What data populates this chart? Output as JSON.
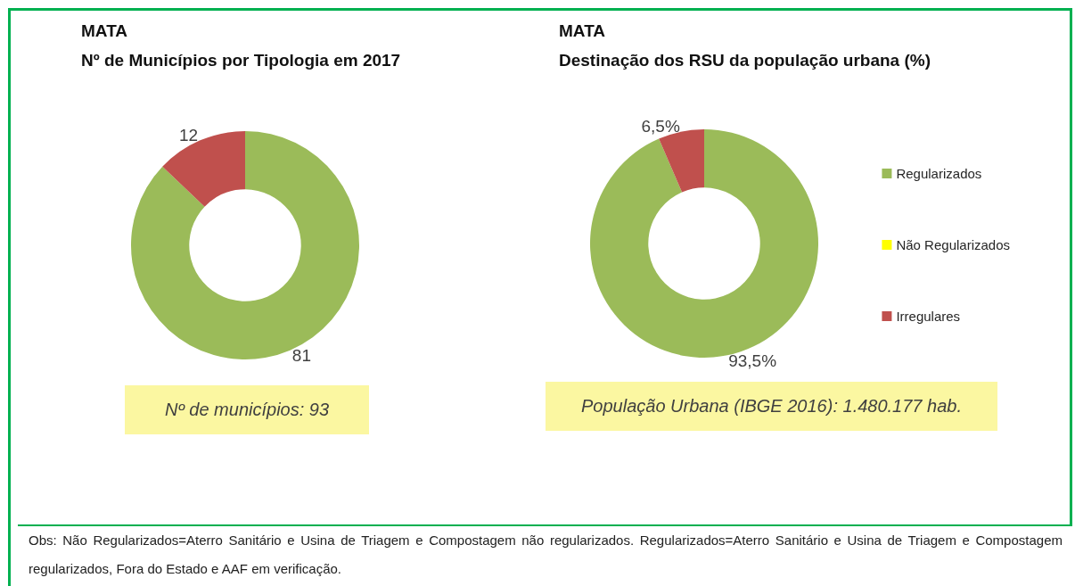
{
  "chart_data": [
    {
      "type": "donut",
      "title": "MATA",
      "subtitle": "Nº de Municípios por Tipologia em 2017",
      "categories": [
        null,
        null,
        null
      ],
      "values": [
        81,
        0,
        12
      ],
      "colors": [
        "#9bbb59",
        "#ffff00",
        "#c0504d"
      ],
      "value_labels": [
        "81",
        null,
        "12"
      ],
      "legend": false,
      "annotations": [
        "Nº de municípios: 93"
      ]
    },
    {
      "type": "donut",
      "title": "MATA",
      "subtitle": "Destinação dos RSU da população urbana (%)",
      "categories": [
        "Regularizados",
        "Não Regularizados",
        "Irregulares"
      ],
      "values": [
        93.5,
        0,
        6.5
      ],
      "colors": [
        "#9bbb59",
        "#ffff00",
        "#c0504d"
      ],
      "value_labels": [
        "93,5%",
        null,
        "6,5%"
      ],
      "legend": "right",
      "annotations": [
        "População Urbana (IBGE 2016): 1.480.177 hab.",
        "Obs: Não Regularizados=Aterro Sanitário e Usina de Triagem e Compostagem não regularizados. Regularizados=Aterro Sanitário e Usina de Triagem e Compostagem regularizados, Fora do Estado e AAF em verificação."
      ]
    }
  ]
}
